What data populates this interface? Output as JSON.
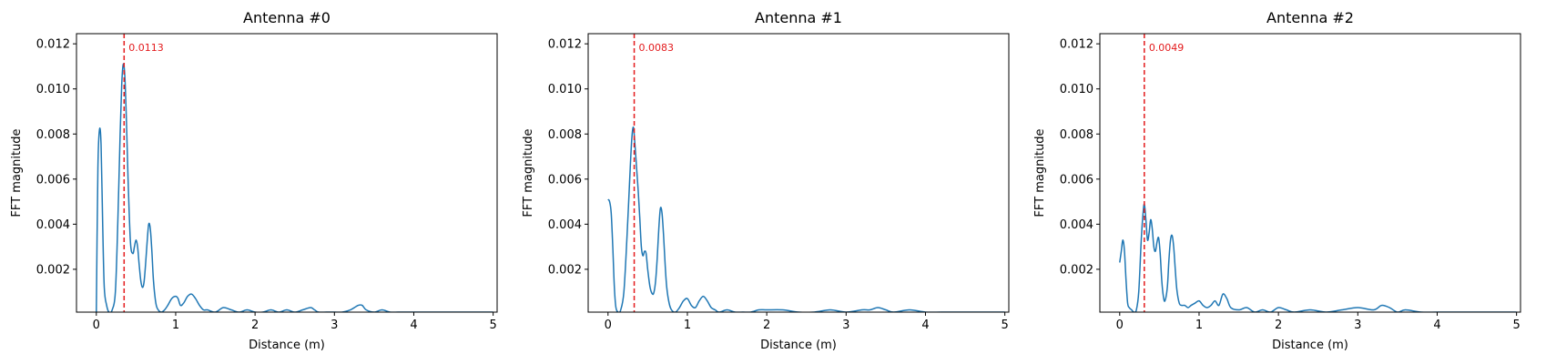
{
  "colors": {
    "series": "#1f77b4",
    "peak_line": "#e31a1c",
    "axes": "#000000",
    "background": "#ffffff"
  },
  "chart_data": [
    {
      "type": "line",
      "title": "Antenna #0",
      "xlabel": "Distance (m)",
      "ylabel": "FFT magnitude",
      "xlim": [
        -0.25,
        5.05
      ],
      "ylim": [
        0.0001,
        0.01245
      ],
      "xticks": [
        0,
        1,
        2,
        3,
        4,
        5
      ],
      "yticks": [
        0.002,
        0.004,
        0.006,
        0.008,
        0.01,
        0.012
      ],
      "ytick_labels": [
        "0.002",
        "0.004",
        "0.006",
        "0.008",
        "0.010",
        "0.012"
      ],
      "grid": false,
      "peak": {
        "x": 0.35,
        "value": "0.0113"
      },
      "series": [
        {
          "x": [
            0.0,
            0.02,
            0.04,
            0.06,
            0.08,
            0.1,
            0.13,
            0.16,
            0.2,
            0.24,
            0.27,
            0.3,
            0.32,
            0.34,
            0.36,
            0.38,
            0.4,
            0.43,
            0.46,
            0.48,
            0.5,
            0.52,
            0.54,
            0.56,
            0.58,
            0.6,
            0.62,
            0.64,
            0.66,
            0.68,
            0.7,
            0.72,
            0.75,
            0.78,
            0.82,
            0.86,
            0.9,
            0.95,
            1.0,
            1.03,
            1.06,
            1.1,
            1.15,
            1.2,
            1.25,
            1.3,
            1.35,
            1.4,
            1.5,
            1.6,
            1.7,
            1.8,
            1.9,
            2.0,
            2.1,
            2.2,
            2.3,
            2.4,
            2.5,
            2.6,
            2.7,
            2.75,
            2.8,
            2.9,
            3.0,
            3.1,
            3.2,
            3.3,
            3.35,
            3.4,
            3.5,
            3.6,
            3.7,
            3.8,
            3.9,
            4.0,
            4.2,
            4.4,
            4.6,
            4.8,
            5.0
          ],
          "y": [
            0.0001,
            0.0065,
            0.0082,
            0.0075,
            0.004,
            0.0012,
            0.0004,
            0.0001,
            0.0002,
            0.001,
            0.004,
            0.008,
            0.0102,
            0.0111,
            0.0105,
            0.0085,
            0.006,
            0.0032,
            0.0027,
            0.003,
            0.0033,
            0.003,
            0.0022,
            0.0015,
            0.0012,
            0.0014,
            0.0022,
            0.0032,
            0.004,
            0.0038,
            0.0028,
            0.0015,
            0.0005,
            0.0002,
            0.0001,
            0.0002,
            0.0004,
            0.0007,
            0.0008,
            0.0007,
            0.0004,
            0.0005,
            0.0008,
            0.0009,
            0.0007,
            0.0004,
            0.0002,
            0.0002,
            0.0001,
            0.0003,
            0.0002,
            0.0001,
            0.0002,
            0.0001,
            0.0001,
            0.0002,
            0.0001,
            0.0002,
            0.0001,
            0.0002,
            0.0003,
            0.0002,
            0.0001,
            0.0001,
            0.0001,
            0.0001,
            0.0002,
            0.0004,
            0.0004,
            0.0002,
            0.0001,
            0.0002,
            0.0001,
            0.0001,
            0.0001,
            0.0001,
            0.0001,
            0.0001,
            0.0001,
            0.0001,
            0.0001
          ]
        }
      ]
    },
    {
      "type": "line",
      "title": "Antenna #1",
      "xlabel": "Distance (m)",
      "ylabel": "FFT magnitude",
      "xlim": [
        -0.25,
        5.05
      ],
      "ylim": [
        0.0001,
        0.01245
      ],
      "xticks": [
        0,
        1,
        2,
        3,
        4,
        5
      ],
      "yticks": [
        0.002,
        0.004,
        0.006,
        0.008,
        0.01,
        0.012
      ],
      "ytick_labels": [
        "0.002",
        "0.004",
        "0.006",
        "0.008",
        "0.010",
        "0.012"
      ],
      "grid": false,
      "peak": {
        "x": 0.33,
        "value": "0.0083"
      },
      "series": [
        {
          "x": [
            0.0,
            0.02,
            0.04,
            0.06,
            0.08,
            0.1,
            0.13,
            0.16,
            0.2,
            0.24,
            0.28,
            0.3,
            0.32,
            0.34,
            0.36,
            0.38,
            0.4,
            0.42,
            0.44,
            0.46,
            0.48,
            0.5,
            0.53,
            0.56,
            0.58,
            0.6,
            0.62,
            0.64,
            0.66,
            0.68,
            0.7,
            0.72,
            0.74,
            0.77,
            0.8,
            0.85,
            0.9,
            0.95,
            1.0,
            1.05,
            1.1,
            1.15,
            1.2,
            1.25,
            1.3,
            1.35,
            1.4,
            1.5,
            1.6,
            1.7,
            1.8,
            1.9,
            2.0,
            2.2,
            2.4,
            2.6,
            2.8,
            3.0,
            3.2,
            3.3,
            3.4,
            3.5,
            3.6,
            3.8,
            4.0,
            4.2,
            4.4,
            4.6,
            4.8,
            5.0
          ],
          "y": [
            0.0051,
            0.005,
            0.0045,
            0.003,
            0.0012,
            0.0003,
            0.0001,
            0.0002,
            0.001,
            0.0035,
            0.0065,
            0.0078,
            0.0083,
            0.0075,
            0.0065,
            0.0055,
            0.0043,
            0.003,
            0.0026,
            0.0028,
            0.0027,
            0.002,
            0.0012,
            0.0009,
            0.001,
            0.0015,
            0.0025,
            0.0038,
            0.0047,
            0.0045,
            0.0035,
            0.0022,
            0.0012,
            0.0005,
            0.0002,
            0.0001,
            0.0003,
            0.0006,
            0.0007,
            0.0004,
            0.0003,
            0.0006,
            0.0008,
            0.0006,
            0.0003,
            0.0002,
            0.0001,
            0.0002,
            0.0001,
            0.0001,
            0.0001,
            0.0002,
            0.0002,
            0.0002,
            0.0001,
            0.0001,
            0.0002,
            0.0001,
            0.0002,
            0.0002,
            0.0003,
            0.0002,
            0.0001,
            0.0002,
            0.0001,
            0.0001,
            0.0001,
            0.0001,
            0.0001,
            0.0001
          ]
        }
      ]
    },
    {
      "type": "line",
      "title": "Antenna #2",
      "xlabel": "Distance (m)",
      "ylabel": "FFT magnitude",
      "xlim": [
        -0.25,
        5.05
      ],
      "ylim": [
        0.0001,
        0.01245
      ],
      "xticks": [
        0,
        1,
        2,
        3,
        4,
        5
      ],
      "yticks": [
        0.002,
        0.004,
        0.006,
        0.008,
        0.01,
        0.012
      ],
      "ytick_labels": [
        "0.002",
        "0.004",
        "0.006",
        "0.008",
        "0.010",
        "0.012"
      ],
      "grid": false,
      "peak": {
        "x": 0.31,
        "value": "0.0049"
      },
      "series": [
        {
          "x": [
            0.0,
            0.02,
            0.04,
            0.06,
            0.08,
            0.1,
            0.12,
            0.15,
            0.18,
            0.21,
            0.24,
            0.27,
            0.29,
            0.31,
            0.33,
            0.35,
            0.37,
            0.39,
            0.41,
            0.43,
            0.45,
            0.47,
            0.49,
            0.51,
            0.53,
            0.55,
            0.57,
            0.6,
            0.62,
            0.64,
            0.66,
            0.68,
            0.7,
            0.72,
            0.75,
            0.78,
            0.82,
            0.86,
            0.9,
            0.95,
            1.0,
            1.05,
            1.1,
            1.15,
            1.2,
            1.25,
            1.3,
            1.35,
            1.4,
            1.5,
            1.6,
            1.7,
            1.8,
            1.9,
            2.0,
            2.1,
            2.2,
            2.4,
            2.6,
            2.8,
            3.0,
            3.2,
            3.3,
            3.4,
            3.5,
            3.6,
            3.8,
            4.0,
            4.2,
            4.4,
            4.6,
            4.8,
            5.0
          ],
          "y": [
            0.0023,
            0.0028,
            0.0033,
            0.0028,
            0.0015,
            0.0005,
            0.0003,
            0.0002,
            0.0001,
            0.0002,
            0.001,
            0.0032,
            0.0043,
            0.0049,
            0.0042,
            0.0033,
            0.0036,
            0.0042,
            0.0038,
            0.003,
            0.0028,
            0.0032,
            0.0034,
            0.0027,
            0.0015,
            0.0008,
            0.0006,
            0.0012,
            0.0024,
            0.0033,
            0.0035,
            0.003,
            0.002,
            0.0011,
            0.0005,
            0.0004,
            0.0004,
            0.0003,
            0.0004,
            0.0005,
            0.0006,
            0.0004,
            0.0003,
            0.0004,
            0.0006,
            0.0004,
            0.0009,
            0.0007,
            0.0003,
            0.0002,
            0.0003,
            0.0001,
            0.0002,
            0.0001,
            0.0003,
            0.0002,
            0.0001,
            0.0002,
            0.0001,
            0.0002,
            0.0003,
            0.0002,
            0.0004,
            0.0003,
            0.0001,
            0.0002,
            0.0001,
            0.0001,
            0.0001,
            0.0001,
            0.0001,
            0.0001,
            0.0001
          ]
        }
      ]
    }
  ]
}
